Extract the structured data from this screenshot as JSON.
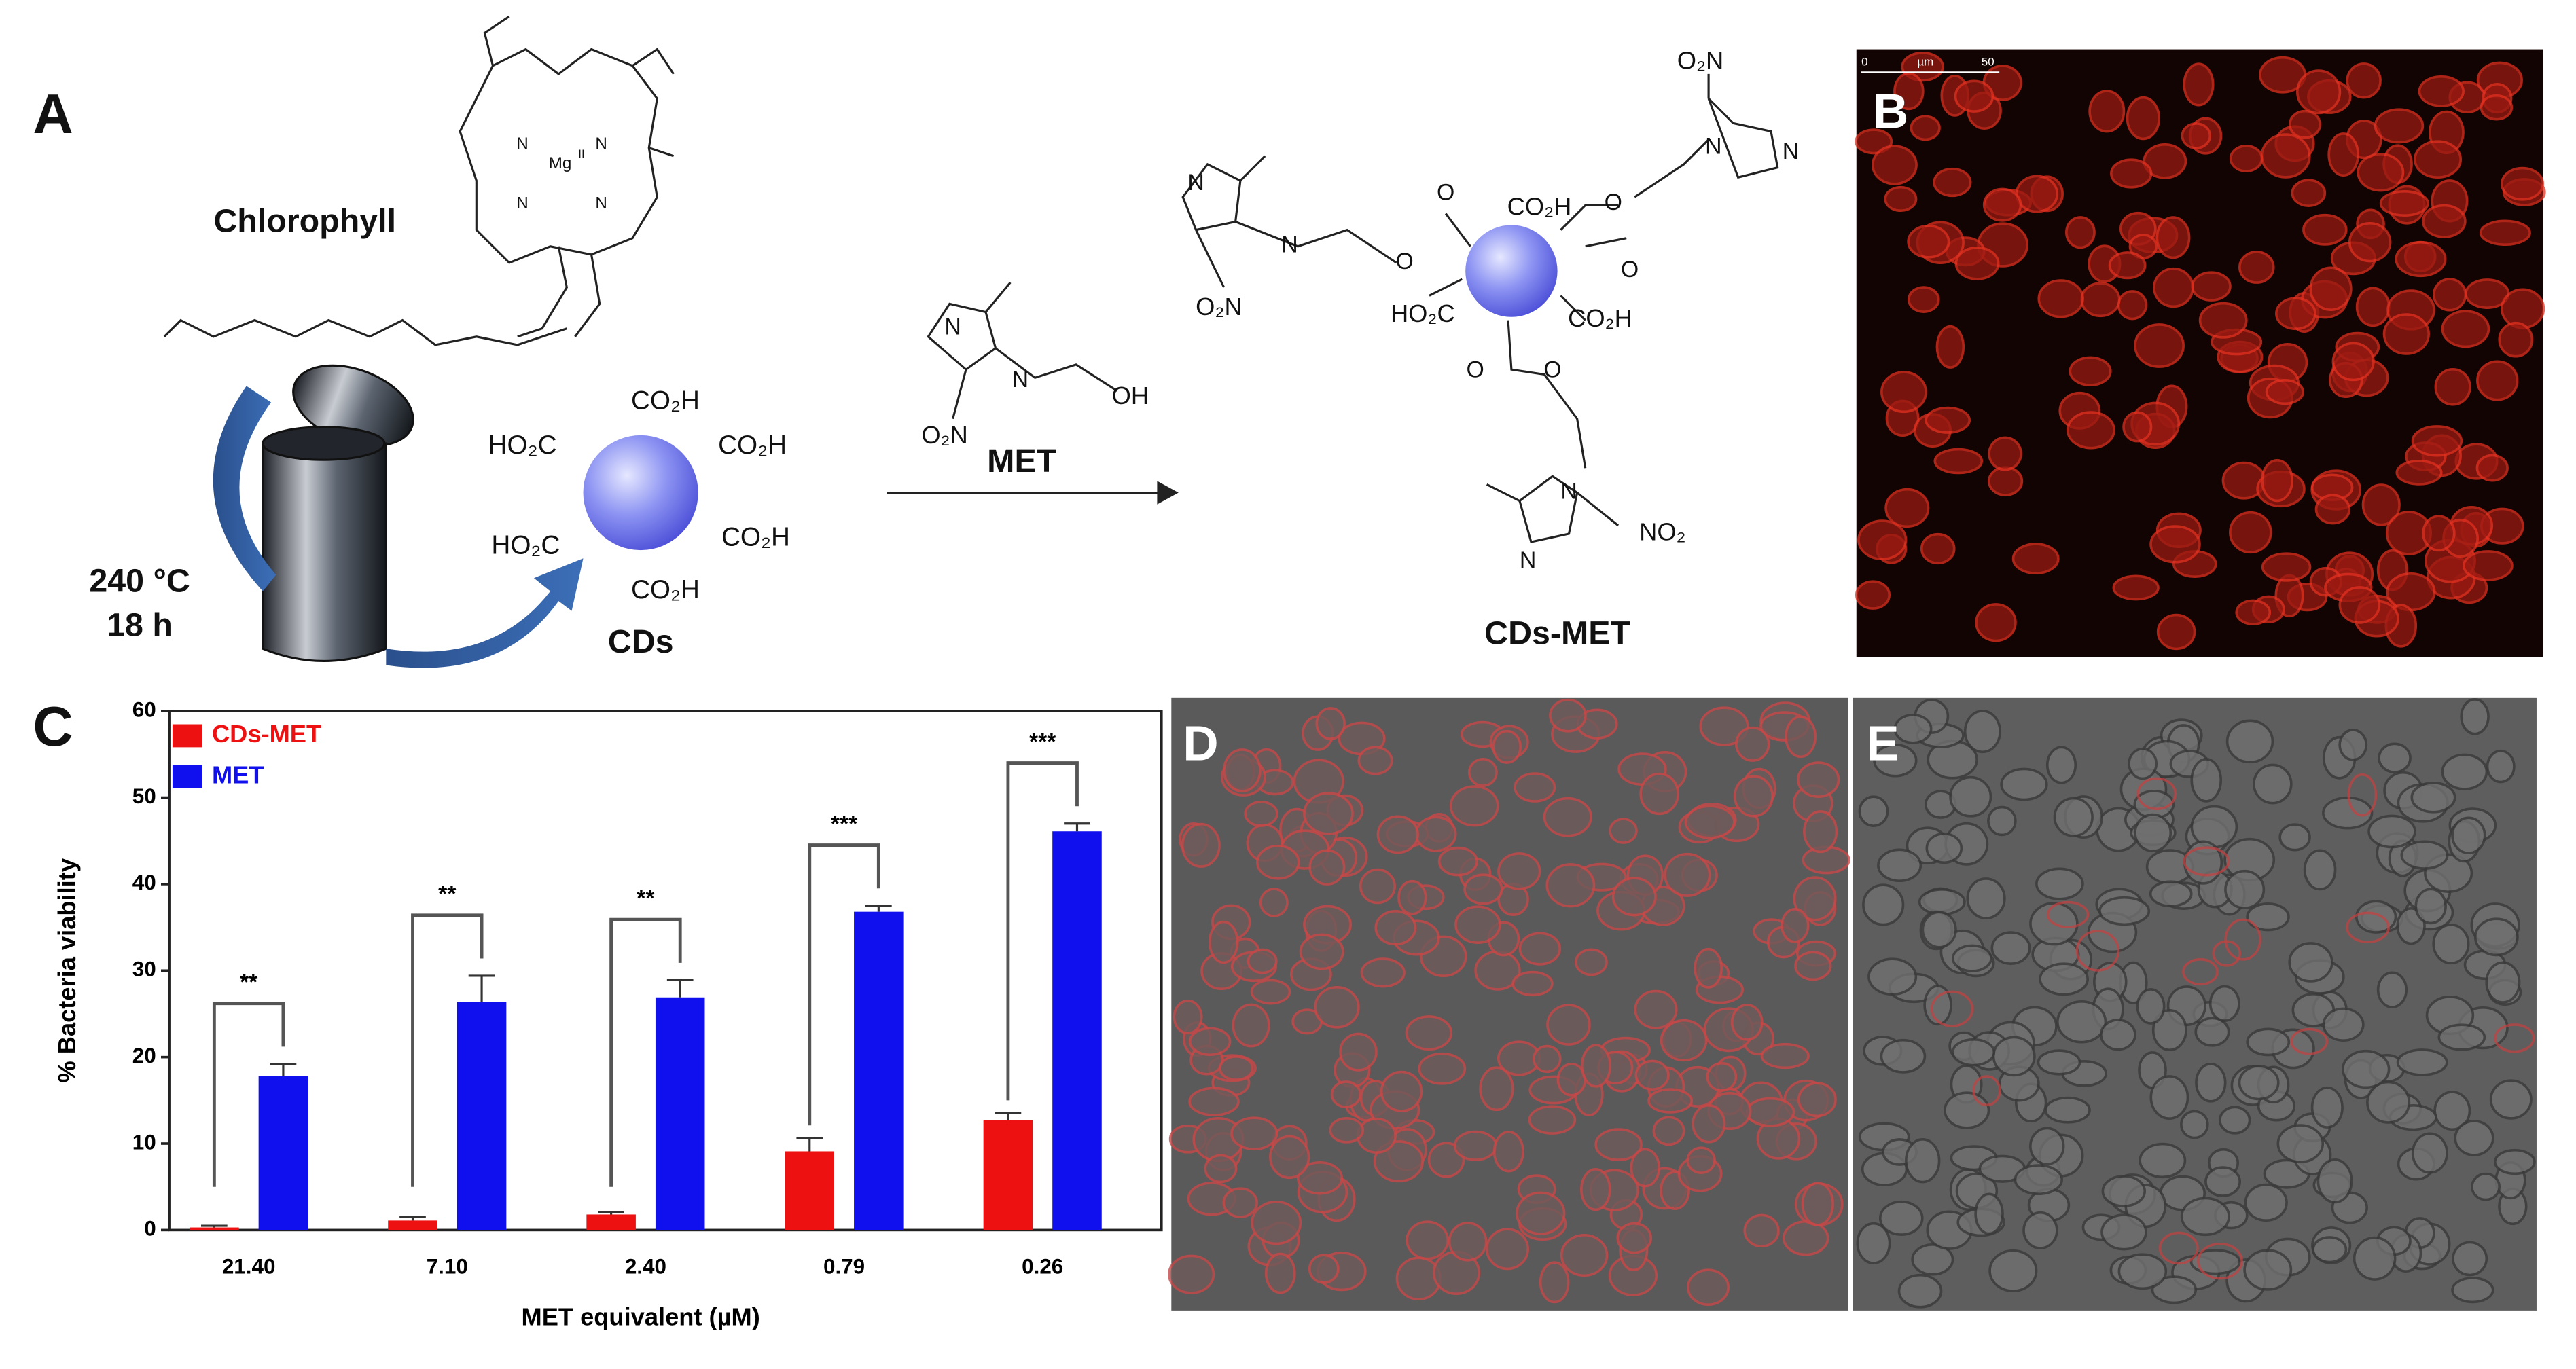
{
  "panels": {
    "a": "A",
    "b": "B",
    "c": "C",
    "d": "D",
    "e": "E"
  },
  "scheme": {
    "chlorophyll": "Chlorophyll",
    "mg": "Mg",
    "mg_sup": "II",
    "temperature": "240 °C",
    "time": "18 h",
    "cds": "CDs",
    "met": "MET",
    "cds_met": "CDs-MET",
    "cds_groups": [
      "CO₂H",
      "HO₂C",
      "CO₂H",
      "HO₂C",
      "CO₂H",
      "CO₂H"
    ],
    "met_groups": [
      "OH",
      "O₂N"
    ],
    "conjugate_groups": [
      "CO₂H",
      "HO₂C",
      "CO₂H",
      "O₂N",
      "O₂N",
      "NO₂"
    ],
    "atoms": [
      "N",
      "N",
      "N",
      "N",
      "N",
      "N",
      "N",
      "N",
      "N",
      "N",
      "N",
      "N",
      "O",
      "O",
      "O",
      "O",
      "O",
      "O"
    ],
    "scale_bar": [
      "0",
      "µm",
      "50"
    ]
  },
  "chart_data": {
    "type": "bar",
    "xlabel": "MET equivalent (µM)",
    "ylabel": "% Bacteria viability",
    "categories": [
      "21.40",
      "7.10",
      "2.40",
      "0.79",
      "0.26"
    ],
    "series": [
      {
        "name": "CDs-MET",
        "color": "#ee1111",
        "values": [
          0.3,
          1.1,
          1.8,
          9.1,
          12.7
        ],
        "errors": [
          0.2,
          0.4,
          0.3,
          1.5,
          0.8
        ]
      },
      {
        "name": "MET",
        "color": "#1010ee",
        "values": [
          17.8,
          26.4,
          26.9,
          36.8,
          46.1
        ],
        "errors": [
          1.4,
          3.0,
          2.0,
          0.7,
          0.9
        ]
      }
    ],
    "significance": [
      "**",
      "**",
      "**",
      "***",
      "***"
    ],
    "ylim": [
      0,
      60
    ],
    "yticks": [
      0,
      10,
      20,
      30,
      40,
      50,
      60
    ],
    "legend": "upper left",
    "grid": false
  }
}
